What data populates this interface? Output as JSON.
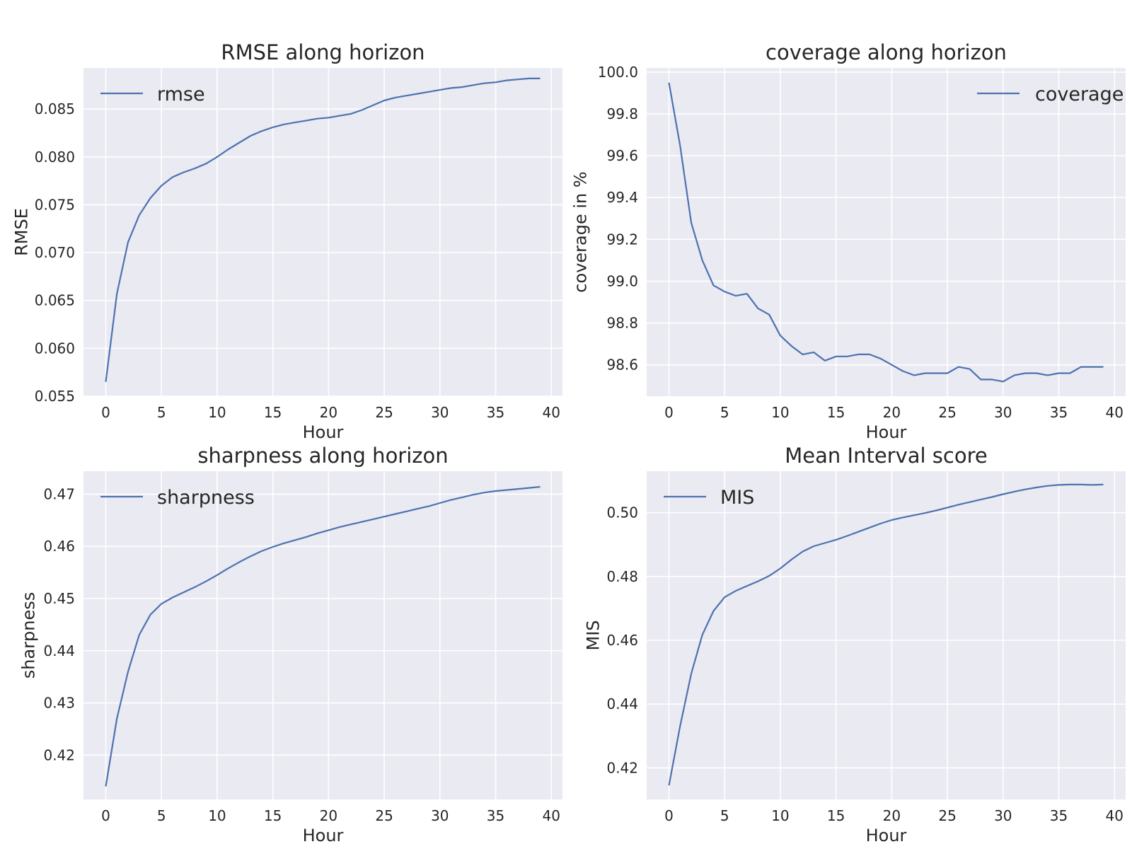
{
  "figure": {
    "background": "#ffffff",
    "axes_face": "#eaeaf2",
    "grid_color": "#ffffff",
    "line_color": "#4c72b0"
  },
  "chart_data": [
    {
      "type": "line",
      "title": "RMSE along horizon",
      "xlabel": "Hour",
      "ylabel": "RMSE",
      "xlim": [
        -2,
        41
      ],
      "ylim": [
        0.055,
        0.0893
      ],
      "xticks": [
        0,
        5,
        10,
        15,
        20,
        25,
        30,
        35,
        40
      ],
      "xtick_labels": [
        "0",
        "5",
        "10",
        "15",
        "20",
        "25",
        "30",
        "35",
        "40"
      ],
      "yticks": [
        0.055,
        0.06,
        0.065,
        0.07,
        0.075,
        0.08,
        0.085
      ],
      "ytick_labels": [
        "0.055",
        "0.060",
        "0.065",
        "0.070",
        "0.075",
        "0.080",
        "0.085"
      ],
      "grid": true,
      "legend": "top-left",
      "series": [
        {
          "name": "rmse",
          "color": "#4c72b0",
          "x": [
            0,
            1,
            2,
            3,
            4,
            5,
            6,
            7,
            8,
            9,
            10,
            11,
            12,
            13,
            14,
            15,
            16,
            17,
            18,
            19,
            20,
            21,
            22,
            23,
            24,
            25,
            26,
            27,
            28,
            29,
            30,
            31,
            32,
            33,
            34,
            35,
            36,
            37,
            38,
            39
          ],
          "y": [
            0.0565,
            0.0657,
            0.0711,
            0.0739,
            0.0757,
            0.077,
            0.0779,
            0.0784,
            0.0788,
            0.0793,
            0.08,
            0.0808,
            0.0815,
            0.0822,
            0.0827,
            0.0831,
            0.0834,
            0.0836,
            0.0838,
            0.084,
            0.0841,
            0.0843,
            0.0845,
            0.0849,
            0.0854,
            0.0859,
            0.0862,
            0.0864,
            0.0866,
            0.0868,
            0.087,
            0.0872,
            0.0873,
            0.0875,
            0.0877,
            0.0878,
            0.088,
            0.0881,
            0.0882,
            0.0882
          ]
        }
      ]
    },
    {
      "type": "line",
      "title": "coverage along horizon",
      "xlabel": "Hour",
      "ylabel": "coverage in %",
      "xlim": [
        -2,
        41
      ],
      "ylim": [
        98.45,
        100.02
      ],
      "xticks": [
        0,
        5,
        10,
        15,
        20,
        25,
        30,
        35,
        40
      ],
      "xtick_labels": [
        "0",
        "5",
        "10",
        "15",
        "20",
        "25",
        "30",
        "35",
        "40"
      ],
      "yticks": [
        98.6,
        98.8,
        99.0,
        99.2,
        99.4,
        99.6,
        99.8,
        100.0
      ],
      "ytick_labels": [
        "98.6",
        "98.8",
        "99.0",
        "99.2",
        "99.4",
        "99.6",
        "99.8",
        "100.0"
      ],
      "grid": true,
      "legend": "top-right",
      "series": [
        {
          "name": "coverage",
          "color": "#4c72b0",
          "x": [
            0,
            1,
            2,
            3,
            4,
            5,
            6,
            7,
            8,
            9,
            10,
            11,
            12,
            13,
            14,
            15,
            16,
            17,
            18,
            19,
            20,
            21,
            22,
            23,
            24,
            25,
            26,
            27,
            28,
            29,
            30,
            31,
            32,
            33,
            34,
            35,
            36,
            37,
            38,
            39
          ],
          "y": [
            99.95,
            99.65,
            99.28,
            99.1,
            98.98,
            98.95,
            98.93,
            98.94,
            98.87,
            98.84,
            98.74,
            98.69,
            98.65,
            98.66,
            98.62,
            98.64,
            98.64,
            98.65,
            98.65,
            98.63,
            98.6,
            98.57,
            98.55,
            98.56,
            98.56,
            98.56,
            98.59,
            98.58,
            98.53,
            98.53,
            98.52,
            98.55,
            98.56,
            98.56,
            98.55,
            98.56,
            98.56,
            98.59,
            98.59,
            98.59
          ]
        }
      ]
    },
    {
      "type": "line",
      "title": "sharpness along horizon",
      "xlabel": "Hour",
      "ylabel": "sharpness",
      "xlim": [
        -2,
        41
      ],
      "ylim": [
        0.4115,
        0.4744
      ],
      "xticks": [
        0,
        5,
        10,
        15,
        20,
        25,
        30,
        35,
        40
      ],
      "xtick_labels": [
        "0",
        "5",
        "10",
        "15",
        "20",
        "25",
        "30",
        "35",
        "40"
      ],
      "yticks": [
        0.42,
        0.43,
        0.44,
        0.45,
        0.46,
        0.47
      ],
      "ytick_labels": [
        "0.42",
        "0.43",
        "0.44",
        "0.45",
        "0.46",
        "0.47"
      ],
      "grid": true,
      "legend": "top-left",
      "series": [
        {
          "name": "sharpness",
          "color": "#4c72b0",
          "x": [
            0,
            1,
            2,
            3,
            4,
            5,
            6,
            7,
            8,
            9,
            10,
            11,
            12,
            13,
            14,
            15,
            16,
            17,
            18,
            19,
            20,
            21,
            22,
            23,
            24,
            25,
            26,
            27,
            28,
            29,
            30,
            31,
            32,
            33,
            34,
            35,
            36,
            37,
            38,
            39
          ],
          "y": [
            0.414,
            0.427,
            0.436,
            0.443,
            0.4469,
            0.449,
            0.4502,
            0.4512,
            0.4522,
            0.4533,
            0.4545,
            0.4558,
            0.457,
            0.4581,
            0.4591,
            0.4599,
            0.4606,
            0.4612,
            0.4618,
            0.4625,
            0.4631,
            0.4637,
            0.4642,
            0.4647,
            0.4652,
            0.4657,
            0.4662,
            0.4667,
            0.4672,
            0.4677,
            0.4683,
            0.4689,
            0.4694,
            0.4699,
            0.4703,
            0.4706,
            0.4708,
            0.471,
            0.4712,
            0.4714
          ]
        }
      ]
    },
    {
      "type": "line",
      "title": "Mean Interval score",
      "xlabel": "Hour",
      "ylabel": "MIS",
      "xlim": [
        -2,
        41
      ],
      "ylim": [
        0.4101,
        0.513
      ],
      "xticks": [
        0,
        5,
        10,
        15,
        20,
        25,
        30,
        35,
        40
      ],
      "xtick_labels": [
        "0",
        "5",
        "10",
        "15",
        "20",
        "25",
        "30",
        "35",
        "40"
      ],
      "yticks": [
        0.42,
        0.44,
        0.46,
        0.48,
        0.5
      ],
      "ytick_labels": [
        "0.42",
        "0.44",
        "0.46",
        "0.48",
        "0.50"
      ],
      "grid": true,
      "legend": "top-left",
      "series": [
        {
          "name": "MIS",
          "color": "#4c72b0",
          "x": [
            0,
            1,
            2,
            3,
            4,
            5,
            6,
            7,
            8,
            9,
            10,
            11,
            12,
            13,
            14,
            15,
            16,
            17,
            18,
            19,
            20,
            21,
            22,
            23,
            24,
            25,
            26,
            27,
            28,
            29,
            30,
            31,
            32,
            33,
            34,
            35,
            36,
            37,
            38,
            39
          ],
          "y": [
            0.4145,
            0.433,
            0.4495,
            0.4617,
            0.4692,
            0.4735,
            0.4755,
            0.477,
            0.4785,
            0.4802,
            0.4825,
            0.4853,
            0.4878,
            0.4895,
            0.4905,
            0.4915,
            0.4927,
            0.494,
            0.4953,
            0.4966,
            0.4977,
            0.4985,
            0.4992,
            0.4999,
            0.5007,
            0.5016,
            0.5025,
            0.5033,
            0.5041,
            0.5049,
            0.5058,
            0.5066,
            0.5073,
            0.5079,
            0.5084,
            0.5087,
            0.5088,
            0.5088,
            0.5087,
            0.5088
          ]
        }
      ]
    }
  ]
}
